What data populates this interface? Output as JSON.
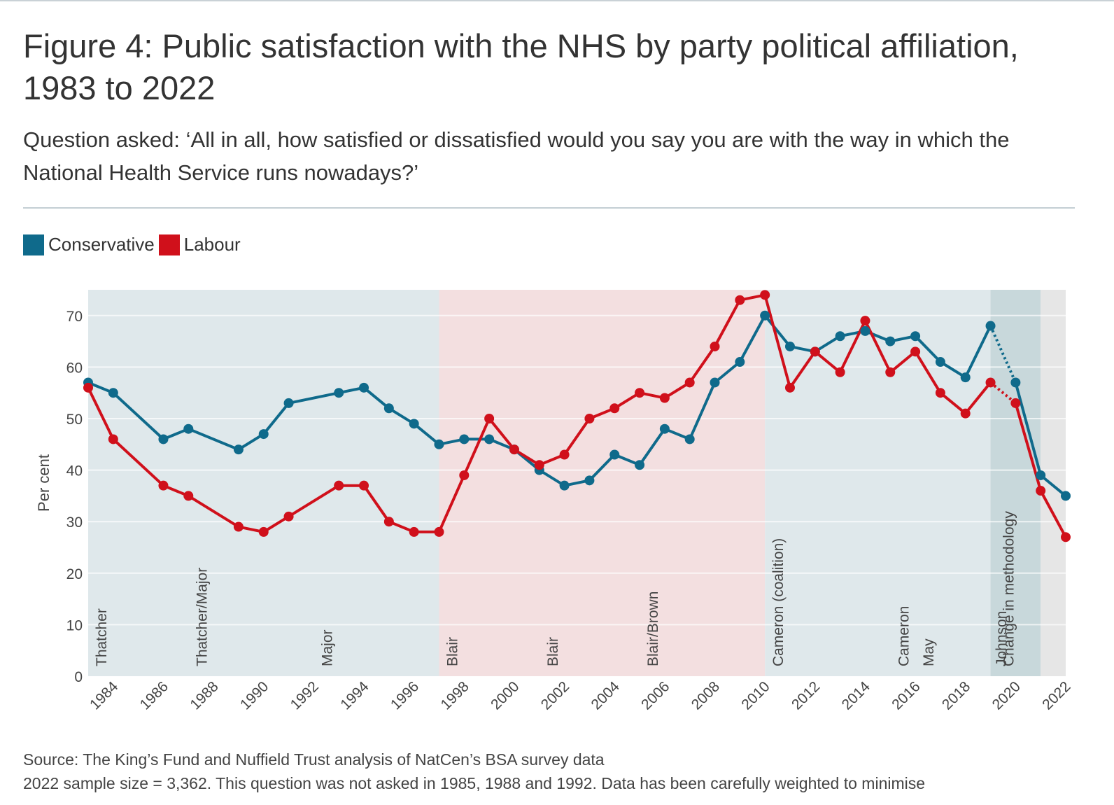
{
  "title": "Figure 4: Public satisfaction with the NHS by party political affiliation, 1983 to 2022",
  "subtitle": "Question asked: ‘All in all, how satisfied or dissatisfied would you say you are with the way in which the National Health Service runs nowadays?’",
  "legend": [
    {
      "label": "Conservative",
      "color": "#0f6a8b"
    },
    {
      "label": "Labour",
      "color": "#d0101b"
    }
  ],
  "colors": {
    "conservative": "#0f6a8b",
    "labour": "#d0101b",
    "con_govt_band": "#dfe8eb",
    "lab_govt_band": "#f3dfe0",
    "methodology_band": "#c8d8db",
    "grid": "#ffffff"
  },
  "source": {
    "line1": "Source: The King’s Fund and Nuffield Trust analysis of NatCen’s BSA survey data",
    "line2": "2022 sample size = 3,362. This question was not asked in 1985, 1988 and 1992. Data has been carefully weighted to minimise"
  },
  "chart_data": {
    "type": "line",
    "title": "Figure 4: Public satisfaction with the NHS by party political affiliation, 1983 to 2022",
    "xlabel": "",
    "ylabel": "Per cent",
    "xlim": [
      1983,
      2022
    ],
    "ylim": [
      0,
      75
    ],
    "yticks": [
      0,
      10,
      20,
      30,
      40,
      50,
      60,
      70
    ],
    "xticks": [
      1984,
      1986,
      1988,
      1990,
      1992,
      1994,
      1996,
      1998,
      2000,
      2002,
      2004,
      2006,
      2008,
      2010,
      2012,
      2014,
      2016,
      2018,
      2020,
      2022
    ],
    "grid": true,
    "legend_position": "top-left",
    "series": [
      {
        "name": "Conservative",
        "color": "#0f6a8b",
        "points": [
          [
            1983,
            57
          ],
          [
            1984,
            55
          ],
          [
            1986,
            46
          ],
          [
            1987,
            48
          ],
          [
            1989,
            44
          ],
          [
            1990,
            47
          ],
          [
            1991,
            53
          ],
          [
            1993,
            55
          ],
          [
            1994,
            56
          ],
          [
            1995,
            52
          ],
          [
            1996,
            49
          ],
          [
            1997,
            45
          ],
          [
            1998,
            46
          ],
          [
            1999,
            46
          ],
          [
            2000,
            44
          ],
          [
            2001,
            40
          ],
          [
            2002,
            37
          ],
          [
            2003,
            38
          ],
          [
            2004,
            43
          ],
          [
            2005,
            41
          ],
          [
            2006,
            48
          ],
          [
            2007,
            46
          ],
          [
            2008,
            57
          ],
          [
            2009,
            61
          ],
          [
            2010,
            70
          ],
          [
            2011,
            64
          ],
          [
            2012,
            63
          ],
          [
            2013,
            66
          ],
          [
            2014,
            67
          ],
          [
            2015,
            65
          ],
          [
            2016,
            66
          ],
          [
            2017,
            61
          ],
          [
            2018,
            58
          ],
          [
            2019,
            68
          ],
          [
            2020,
            57
          ],
          [
            2021,
            39
          ],
          [
            2022,
            35
          ]
        ]
      },
      {
        "name": "Labour",
        "color": "#d0101b",
        "points": [
          [
            1983,
            56
          ],
          [
            1984,
            46
          ],
          [
            1986,
            37
          ],
          [
            1987,
            35
          ],
          [
            1989,
            29
          ],
          [
            1990,
            28
          ],
          [
            1991,
            31
          ],
          [
            1993,
            37
          ],
          [
            1994,
            37
          ],
          [
            1995,
            30
          ],
          [
            1996,
            28
          ],
          [
            1997,
            28
          ],
          [
            1998,
            39
          ],
          [
            1999,
            50
          ],
          [
            2000,
            44
          ],
          [
            2001,
            41
          ],
          [
            2002,
            43
          ],
          [
            2003,
            50
          ],
          [
            2004,
            52
          ],
          [
            2005,
            55
          ],
          [
            2006,
            54
          ],
          [
            2007,
            57
          ],
          [
            2008,
            64
          ],
          [
            2009,
            73
          ],
          [
            2010,
            74
          ],
          [
            2011,
            56
          ],
          [
            2012,
            63
          ],
          [
            2013,
            59
          ],
          [
            2014,
            69
          ],
          [
            2015,
            59
          ],
          [
            2016,
            63
          ],
          [
            2017,
            55
          ],
          [
            2018,
            51
          ],
          [
            2019,
            57
          ],
          [
            2020,
            53
          ],
          [
            2021,
            36
          ],
          [
            2022,
            27
          ]
        ]
      }
    ],
    "dotted_segment": {
      "from": 2019,
      "to": 2020,
      "note": "methodology change"
    },
    "bands": [
      {
        "from": 1983,
        "to": 1997,
        "party": "Conservative"
      },
      {
        "from": 1997,
        "to": 2010,
        "party": "Labour"
      },
      {
        "from": 2010,
        "to": 2019,
        "party": "Conservative"
      },
      {
        "from": 2019,
        "to": 2021,
        "party": "Methodology"
      },
      {
        "from": 2021,
        "to": 2022,
        "party": "None"
      }
    ],
    "annotations": [
      {
        "x": 1983,
        "text": "Thatcher"
      },
      {
        "x": 1987,
        "text": "Thatcher/Major"
      },
      {
        "x": 1992,
        "text": "Major"
      },
      {
        "x": 1997,
        "text": "Blair"
      },
      {
        "x": 2001,
        "text": "Blair"
      },
      {
        "x": 2005,
        "text": "Blair/Brown"
      },
      {
        "x": 2010,
        "text": "Cameron (coalition)"
      },
      {
        "x": 2015,
        "text": "Cameron"
      },
      {
        "x": 2016,
        "text": "May"
      },
      {
        "x": 2018.9,
        "text": "Johnson"
      },
      {
        "x": 2019.2,
        "text": "Change in methodology"
      }
    ]
  }
}
